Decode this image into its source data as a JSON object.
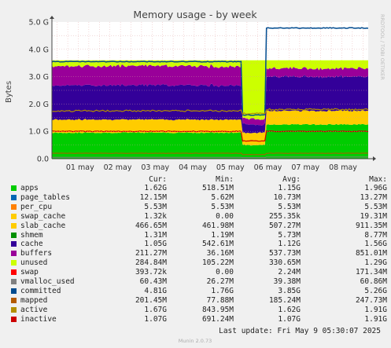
{
  "chart_data": {
    "type": "area",
    "title": "Memory usage - by week",
    "ylabel": "Bytes",
    "side_label": "RRDTOOL / TOBI OETIKER",
    "ylim": [
      0,
      5.0
    ],
    "y_unit": "G",
    "grid": true,
    "yticks": [
      "0.0",
      "1.0 G",
      "2.0 G",
      "3.0 G",
      "4.0 G",
      "5.0 G"
    ],
    "xticks": [
      "01 may",
      "02 may",
      "03 may",
      "04 may",
      "05 may",
      "06 may",
      "07 may",
      "08 may"
    ],
    "columns": [
      "Cur:",
      "Min:",
      "Avg:",
      "Max:"
    ],
    "series": [
      {
        "name": "apps",
        "color": "#00cc00",
        "cur": "1.62G",
        "min": "518.51M",
        "avg": "1.15G",
        "max": "1.96G"
      },
      {
        "name": "page_tables",
        "color": "#0066b3",
        "cur": "12.15M",
        "min": "5.62M",
        "avg": "10.73M",
        "max": "13.27M"
      },
      {
        "name": "per_cpu",
        "color": "#ff8000",
        "cur": "5.53M",
        "min": "5.53M",
        "avg": "5.53M",
        "max": "5.53M"
      },
      {
        "name": "swap_cache",
        "color": "#ffcc00",
        "cur": "1.32k",
        "min": "0.00",
        "avg": "255.35k",
        "max": "19.31M"
      },
      {
        "name": "slab_cache",
        "color": "#ffcc00",
        "cur": "466.65M",
        "min": "461.98M",
        "avg": "507.27M",
        "max": "911.35M"
      },
      {
        "name": "shmem",
        "color": "#008f00",
        "cur": "1.31M",
        "min": "1.19M",
        "avg": "5.73M",
        "max": "8.77M"
      },
      {
        "name": "cache",
        "color": "#330099",
        "cur": "1.05G",
        "min": "542.61M",
        "avg": "1.12G",
        "max": "1.56G"
      },
      {
        "name": "buffers",
        "color": "#990099",
        "cur": "211.27M",
        "min": "36.16M",
        "avg": "537.73M",
        "max": "851.01M"
      },
      {
        "name": "unused",
        "color": "#ccff00",
        "cur": "284.84M",
        "min": "105.22M",
        "avg": "330.65M",
        "max": "1.29G"
      },
      {
        "name": "swap",
        "color": "#ff0000",
        "cur": "393.72k",
        "min": "0.00",
        "avg": "2.24M",
        "max": "171.34M"
      },
      {
        "name": "vmalloc_used",
        "color": "#808080",
        "cur": "60.43M",
        "min": "26.27M",
        "avg": "39.38M",
        "max": "60.86M"
      },
      {
        "name": "committed",
        "color": "#004b8f",
        "cur": "4.81G",
        "min": "1.76G",
        "avg": "3.85G",
        "max": "5.26G"
      },
      {
        "name": "mapped",
        "color": "#b35a00",
        "cur": "201.45M",
        "min": "77.88M",
        "avg": "185.24M",
        "max": "247.73M"
      },
      {
        "name": "active",
        "color": "#b38f00",
        "cur": "1.67G",
        "min": "843.95M",
        "avg": "1.62G",
        "max": "1.91G"
      },
      {
        "name": "inactive",
        "color": "#cc0000",
        "cur": "1.07G",
        "min": "691.24M",
        "avg": "1.07G",
        "max": "1.91G"
      }
    ],
    "last_update": "Last update: Fri May  9 05:30:07 2025",
    "footer": "Munin 2.0.73"
  }
}
